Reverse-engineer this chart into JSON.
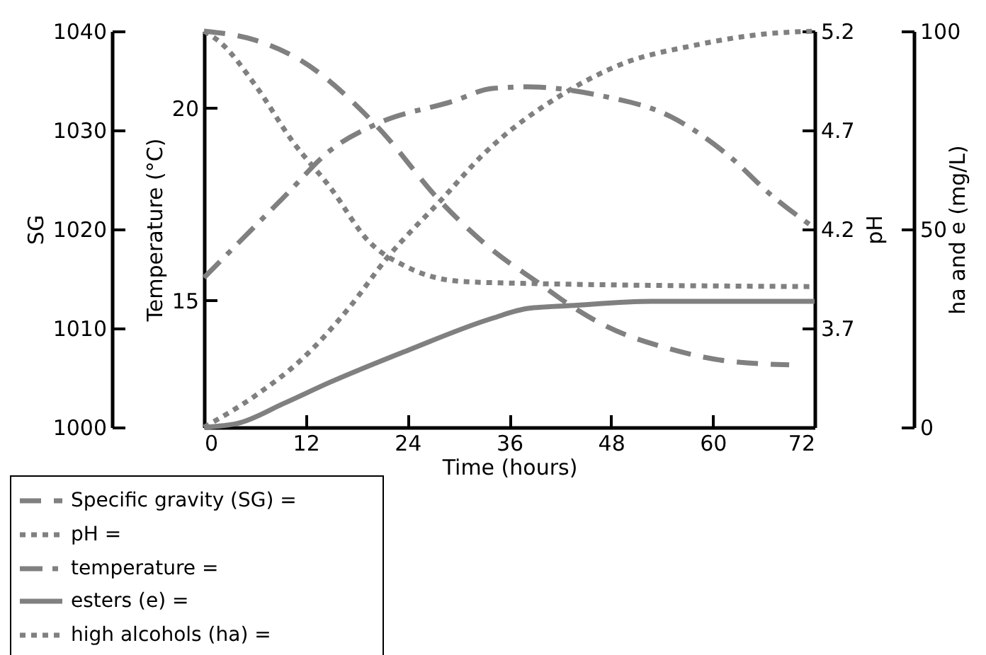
{
  "chart_data": [
    {
      "type": "line",
      "xlabel": "Time (hours)",
      "xlim": [
        0,
        72
      ],
      "xticks": [
        0,
        12,
        24,
        36,
        48,
        60,
        72
      ],
      "ylabel": "Temperature (°C)",
      "ylim": [
        11.7,
        22
      ],
      "yticks": [
        15,
        20
      ],
      "y2label": "pH",
      "y2lim": [
        3.2,
        5.2
      ],
      "y2ticks": [
        3.7,
        4.2,
        4.7,
        5.2
      ],
      "y3label": "SG",
      "y3lim": [
        1000,
        1040
      ],
      "y3ticks": [
        1000,
        1010,
        1020,
        1030,
        1040
      ],
      "grid": false,
      "legend": "bottom left",
      "series": [
        {
          "name": "Specific gravity (SG) =",
          "color": "#808080",
          "axis": "y3",
          "line_style": "dashed",
          "x": [
            0,
            6,
            11.5,
            20.5,
            28,
            34,
            39.4,
            43.2,
            47.2,
            55,
            61.6,
            69
          ],
          "values": [
            1040,
            1039.1,
            1037,
            1030.3,
            1022.7,
            1017.9,
            1014.6,
            1012.3,
            1010.3,
            1007.9,
            1006.7,
            1006.3
          ]
        },
        {
          "name": "pH =",
          "color": "#808080",
          "axis": "y2",
          "line_style": "dotted",
          "x": [
            0,
            2,
            6,
            10.5,
            14.9,
            19.4,
            23.9,
            29.4,
            34,
            72
          ],
          "values": [
            5.2,
            5.14,
            4.93,
            4.64,
            4.41,
            4.14,
            4.01,
            3.94,
            3.93,
            3.91
          ]
        },
        {
          "name": "temperature =",
          "color": "#808080",
          "line_style": "dashdot",
          "x": [
            0,
            9.4,
            14.9,
            20.5,
            29.4,
            34,
            38.2,
            46.6,
            55,
            62.3,
            66.6,
            72
          ],
          "values": [
            15.59,
            17.68,
            18.9,
            19.6,
            20.18,
            20.51,
            20.55,
            20.33,
            19.78,
            18.68,
            17.79,
            16.88
          ]
        }
      ]
    },
    {
      "type": "line",
      "xlim": [
        0,
        72
      ],
      "tick_labels": "y",
      "ylabel": "ha and e (mg/L)",
      "ylim": [
        0,
        100
      ],
      "yticks": [
        0,
        50,
        100
      ],
      "grid": false,
      "legend": "bottom left",
      "series": [
        {
          "name": "esters (e) =",
          "color": "#808080",
          "line_style": "solid",
          "x": [
            0,
            4,
            9.4,
            14.9,
            23.9,
            34,
            38.2,
            43.2,
            52.8,
            72
          ],
          "values": [
            0,
            1,
            6,
            11.4,
            19.3,
            27.5,
            30,
            30.7,
            31.8,
            31.8
          ]
        },
        {
          "name": "high alcohols (ha) =",
          "color": "#808080",
          "line_style": "dotted",
          "x": [
            0,
            6,
            11.7,
            17.2,
            21.5,
            28.2,
            32.8,
            42.7,
            49.4,
            57.8,
            66.2,
            72
          ],
          "values": [
            0,
            7.9,
            17.5,
            30.4,
            42.5,
            57.9,
            68.6,
            84.6,
            91.8,
            96.4,
            99.3,
            100
          ]
        }
      ]
    }
  ]
}
